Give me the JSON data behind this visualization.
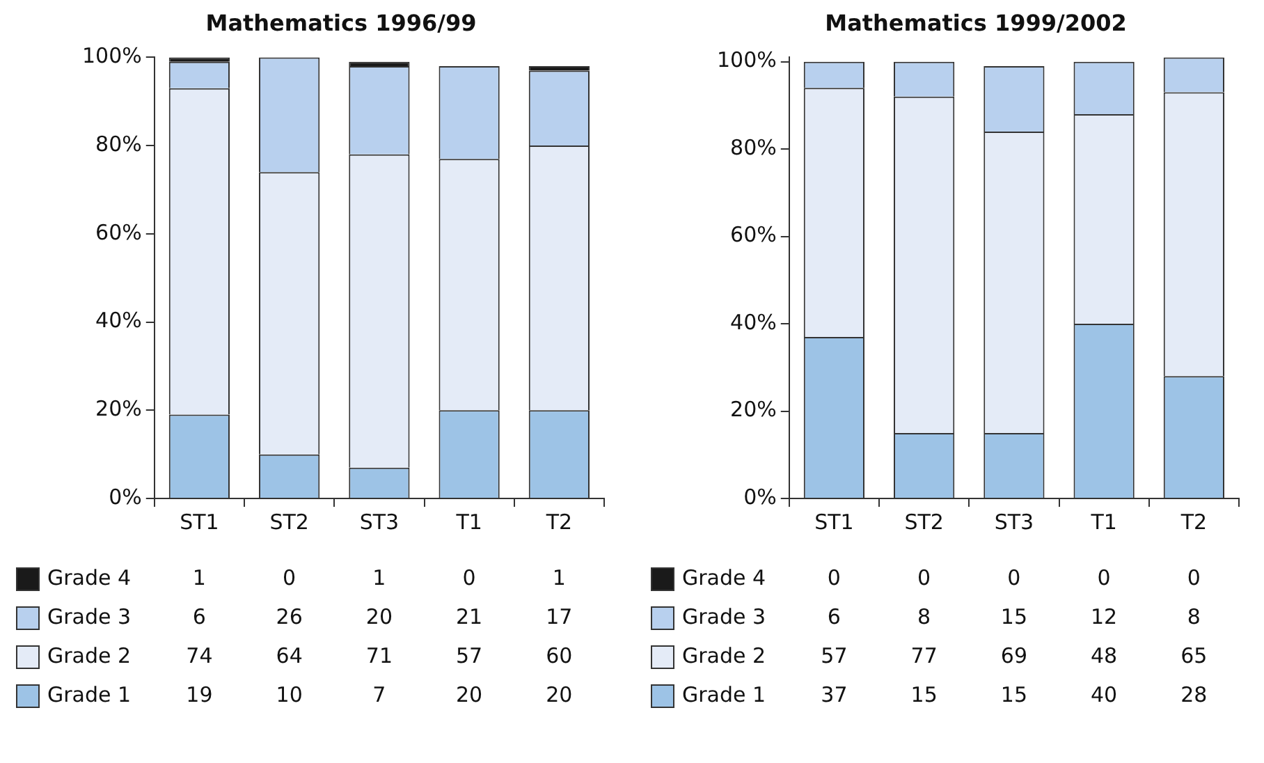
{
  "chart_data": [
    {
      "type": "bar",
      "title": "Mathematics 1996/99",
      "categories": [
        "ST1",
        "ST2",
        "ST3",
        "T1",
        "T2"
      ],
      "stacked": true,
      "data_labels": true,
      "legend": "bottom",
      "grid": false,
      "ylim": [
        0,
        100
      ],
      "yticks": [
        {
          "value": 0,
          "label": "0%"
        },
        {
          "value": 20,
          "label": "20%"
        },
        {
          "value": 40,
          "label": "40%"
        },
        {
          "value": 60,
          "label": "60%"
        },
        {
          "value": 80,
          "label": "80%"
        },
        {
          "value": 100,
          "label": "100%"
        }
      ],
      "series": [
        {
          "name": "Grade 1",
          "color": "#9dc3e6",
          "values": [
            19,
            10,
            7,
            20,
            20
          ]
        },
        {
          "name": "Grade 2",
          "color": "#e4ebf7",
          "values": [
            74,
            64,
            71,
            57,
            60
          ]
        },
        {
          "name": "Grade 3",
          "color": "#b8d0ee",
          "values": [
            6,
            26,
            20,
            21,
            17
          ]
        },
        {
          "name": "Grade 4",
          "color": "#1a1a1a",
          "values": [
            1,
            0,
            1,
            0,
            1
          ]
        }
      ]
    },
    {
      "type": "bar",
      "title": "Mathematics 1999/2002",
      "categories": [
        "ST1",
        "ST2",
        "ST3",
        "T1",
        "T2"
      ],
      "stacked": true,
      "data_labels": true,
      "legend": "bottom",
      "grid": false,
      "ylim": [
        0,
        101
      ],
      "yticks": [
        {
          "value": 0,
          "label": "0%"
        },
        {
          "value": 20,
          "label": "20%"
        },
        {
          "value": 40,
          "label": "40%"
        },
        {
          "value": 60,
          "label": "60%"
        },
        {
          "value": 80,
          "label": "80%"
        },
        {
          "value": 100,
          "label": "100%"
        }
      ],
      "series": [
        {
          "name": "Grade 1",
          "color": "#9dc3e6",
          "values": [
            37,
            15,
            15,
            40,
            28
          ]
        },
        {
          "name": "Grade 2",
          "color": "#e4ebf7",
          "values": [
            57,
            77,
            69,
            48,
            65
          ]
        },
        {
          "name": "Grade 3",
          "color": "#b8d0ee",
          "values": [
            6,
            8,
            15,
            12,
            8
          ]
        },
        {
          "name": "Grade 4",
          "color": "#1a1a1a",
          "values": [
            0,
            0,
            0,
            0,
            0
          ]
        }
      ]
    }
  ]
}
